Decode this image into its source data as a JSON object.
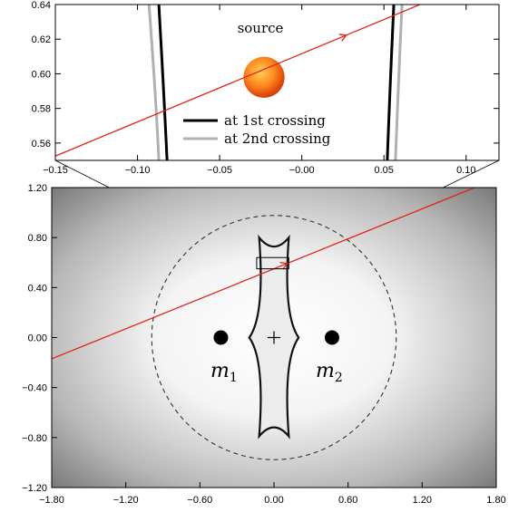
{
  "top_panel": {
    "source_label": "source",
    "legend": [
      {
        "label": "at 1st crossing",
        "color": "#000000"
      },
      {
        "label": "at 2nd crossing",
        "color": "#b0b0b0"
      }
    ],
    "xlim": [
      -0.15,
      0.12
    ],
    "ylim": [
      0.55,
      0.64
    ],
    "x_ticks": [
      "−0.15",
      "−0.10",
      "−0.05",
      "−0.00",
      "0.05",
      "0.10"
    ],
    "x_tick_values": [
      -0.15,
      -0.1,
      -0.05,
      0.0,
      0.05,
      0.1
    ],
    "y_ticks": [
      "0.56",
      "0.58",
      "0.60",
      "0.62",
      "0.64"
    ],
    "y_tick_values": [
      0.56,
      0.58,
      0.6,
      0.62,
      0.64
    ],
    "source_center": [
      -0.023,
      0.598
    ],
    "source_radius": 0.0125,
    "trajectory": [
      [
        -0.15,
        0.5525
      ],
      [
        0.077,
        0.642
      ]
    ],
    "caustic_left_1st": [
      [
        -0.087,
        0.64
      ],
      [
        -0.084,
        0.59
      ],
      [
        -0.082,
        0.55
      ]
    ],
    "caustic_left_2nd": [
      [
        -0.093,
        0.64
      ],
      [
        -0.089,
        0.59
      ],
      [
        -0.087,
        0.55
      ]
    ],
    "caustic_right_1st": [
      [
        0.056,
        0.64
      ],
      [
        0.054,
        0.6
      ],
      [
        0.052,
        0.55
      ]
    ],
    "caustic_right_2nd": [
      [
        0.061,
        0.64
      ],
      [
        0.059,
        0.6
      ],
      [
        0.057,
        0.55
      ]
    ]
  },
  "bottom_panel": {
    "mass_labels": [
      {
        "name": "m",
        "sub": "1"
      },
      {
        "name": "m",
        "sub": "2"
      }
    ],
    "xlim": [
      -1.8,
      1.8
    ],
    "ylim": [
      -1.2,
      1.2
    ],
    "x_ticks": [
      "−1.80",
      "−1.20",
      "−0.60",
      "0.00",
      "0.60",
      "1.20",
      "1.80"
    ],
    "x_tick_values": [
      -1.8,
      -1.2,
      -0.6,
      0.0,
      0.6,
      1.2,
      1.8
    ],
    "y_ticks": [
      "1.20",
      "0.80",
      "0.40",
      "0.00",
      "−0.40",
      "−0.80",
      "−1.20"
    ],
    "y_tick_values": [
      1.2,
      0.8,
      0.4,
      0.0,
      -0.4,
      -0.8,
      -1.2
    ],
    "masses": [
      [
        -0.43,
        0.0
      ],
      [
        0.47,
        0.0
      ]
    ],
    "center_mark": [
      0.0,
      0.0
    ],
    "einstein_ring_radius": 0.99,
    "zoom_box": [
      [
        -0.14,
        0.55
      ],
      [
        0.12,
        0.64
      ]
    ],
    "trajectory": [
      [
        -1.8,
        -0.17
      ],
      [
        1.8,
        1.27
      ]
    ],
    "caustic_cusps": [
      [
        -0.12,
        0.8
      ],
      [
        0.12,
        0.8
      ],
      [
        -0.12,
        -0.79
      ],
      [
        0.12,
        -0.79
      ],
      [
        -0.2,
        0.0
      ],
      [
        0.2,
        0.0
      ]
    ]
  },
  "colors": {
    "trajectory": "#e0241b",
    "source_inner": "#ffd15a",
    "source_mid": "#ff8a1f",
    "source_outer": "#d8400a",
    "background_light": "#ffffff",
    "background_dark": "#6a6a6a"
  }
}
